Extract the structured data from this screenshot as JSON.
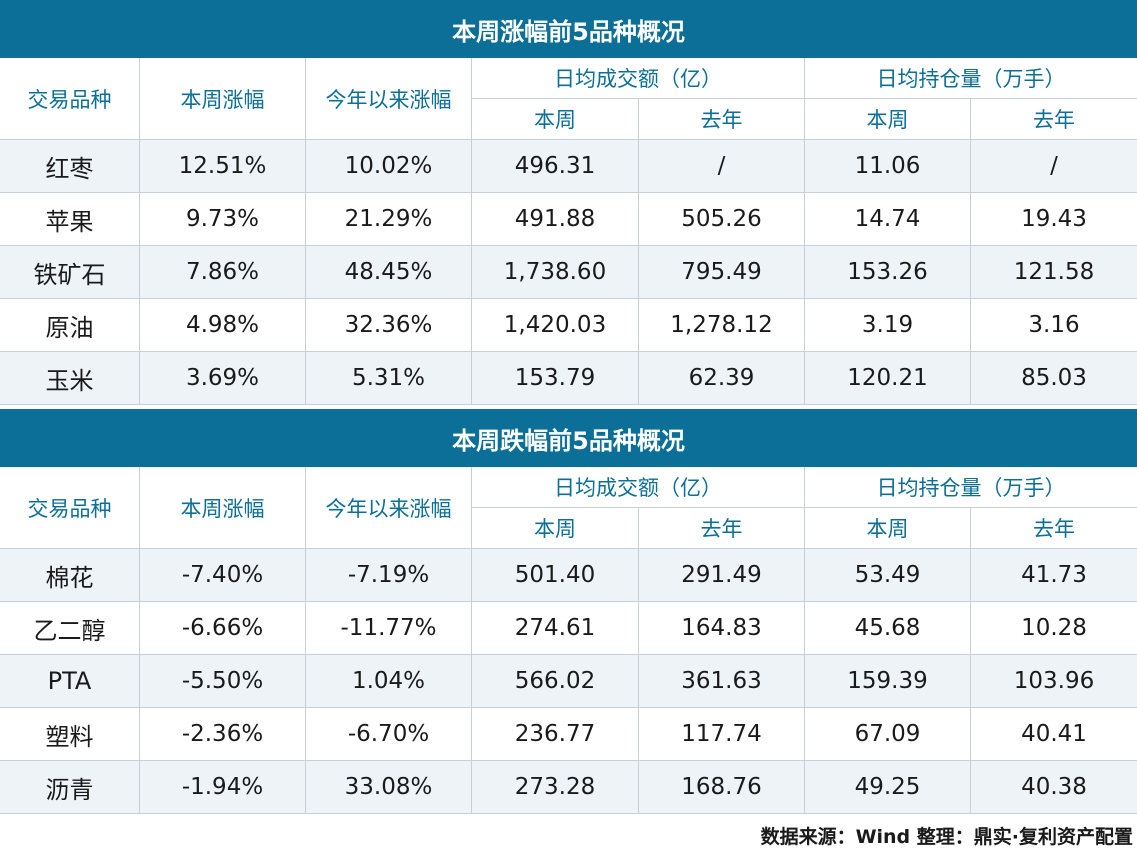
{
  "tables": [
    {
      "title": "本周涨幅前5品种概况",
      "headers": {
        "variety": "交易品种",
        "week_change": "本周涨幅",
        "ytd_change": "今年以来涨幅",
        "turnover": "日均成交额（亿）",
        "open_interest": "日均持仓量（万手）",
        "this_week": "本周",
        "last_year": "去年"
      },
      "rows": [
        [
          "红枣",
          "12.51%",
          "10.02%",
          "496.31",
          "/",
          "11.06",
          "/"
        ],
        [
          "苹果",
          "9.73%",
          "21.29%",
          "491.88",
          "505.26",
          "14.74",
          "19.43"
        ],
        [
          "铁矿石",
          "7.86%",
          "48.45%",
          "1,738.60",
          "795.49",
          "153.26",
          "121.58"
        ],
        [
          "原油",
          "4.98%",
          "32.36%",
          "1,420.03",
          "1,278.12",
          "3.19",
          "3.16"
        ],
        [
          "玉米",
          "3.69%",
          "5.31%",
          "153.79",
          "62.39",
          "120.21",
          "85.03"
        ]
      ]
    },
    {
      "title": "本周跌幅前5品种概况",
      "headers": {
        "variety": "交易品种",
        "week_change": "本周涨幅",
        "ytd_change": "今年以来涨幅",
        "turnover": "日均成交额（亿）",
        "open_interest": "日均持仓量（万手）",
        "this_week": "本周",
        "last_year": "去年"
      },
      "rows": [
        [
          "棉花",
          "-7.40%",
          "-7.19%",
          "501.40",
          "291.49",
          "53.49",
          "41.73"
        ],
        [
          "乙二醇",
          "-6.66%",
          "-11.77%",
          "274.61",
          "164.83",
          "45.68",
          "10.28"
        ],
        [
          "PTA",
          "-5.50%",
          "1.04%",
          "566.02",
          "361.63",
          "159.39",
          "103.96"
        ],
        [
          "塑料",
          "-2.36%",
          "-6.70%",
          "236.77",
          "117.74",
          "67.09",
          "40.41"
        ],
        [
          "沥青",
          "-1.94%",
          "33.08%",
          "273.28",
          "168.76",
          "49.25",
          "40.38"
        ]
      ]
    }
  ],
  "footer": "数据来源：Wind   整理：鼎实·复利资产配置",
  "colors": {
    "title_bg": "#0b6f98",
    "header_text": "#0b6f98",
    "row_shade": "#eef3f8",
    "grid_line": "#c6d0d8"
  }
}
